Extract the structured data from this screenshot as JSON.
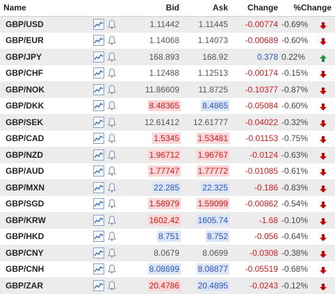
{
  "headers": {
    "name": "Name",
    "bid": "Bid",
    "ask": "Ask",
    "change": "Change",
    "pct": "%Change"
  },
  "colors": {
    "down_text": "#d01a1a",
    "down_bg": "#fbd7d7",
    "up_text": "#2a56c6",
    "up_bg": "#dbe5f7",
    "arrow_down": "#cc0000",
    "arrow_up": "#1e8c3a"
  },
  "rows": [
    {
      "name": "GBP/USD",
      "bid": "1.11442",
      "bid_state": "flat",
      "ask": "1.11445",
      "ask_state": "flat",
      "change": "-0.00774",
      "pct": "-0.69%",
      "dir": "down"
    },
    {
      "name": "GBP/EUR",
      "bid": "1.14068",
      "bid_state": "flat",
      "ask": "1.14073",
      "ask_state": "flat",
      "change": "-0.00689",
      "pct": "-0.60%",
      "dir": "down"
    },
    {
      "name": "GBP/JPY",
      "bid": "168.893",
      "bid_state": "flat",
      "ask": "168.92",
      "ask_state": "flat",
      "change": "0.378",
      "pct": "0.22%",
      "dir": "up"
    },
    {
      "name": "GBP/CHF",
      "bid": "1.12488",
      "bid_state": "flat",
      "ask": "1.12513",
      "ask_state": "flat",
      "change": "-0.00174",
      "pct": "-0.15%",
      "dir": "down"
    },
    {
      "name": "GBP/NOK",
      "bid": "11.86609",
      "bid_state": "flat",
      "ask": "11.8725",
      "ask_state": "flat",
      "change": "-0.10377",
      "pct": "-0.87%",
      "dir": "down"
    },
    {
      "name": "GBP/DKK",
      "bid": "8.48365",
      "bid_state": "down",
      "ask": "8.4865",
      "ask_state": "up",
      "change": "-0.05084",
      "pct": "-0.60%",
      "dir": "down"
    },
    {
      "name": "GBP/SEK",
      "bid": "12.61412",
      "bid_state": "flat",
      "ask": "12.61777",
      "ask_state": "flat",
      "change": "-0.04022",
      "pct": "-0.32%",
      "dir": "down"
    },
    {
      "name": "GBP/CAD",
      "bid": "1.5345",
      "bid_state": "down",
      "ask": "1.53481",
      "ask_state": "down",
      "change": "-0.01153",
      "pct": "-0.75%",
      "dir": "down"
    },
    {
      "name": "GBP/NZD",
      "bid": "1.96712",
      "bid_state": "down",
      "ask": "1.96767",
      "ask_state": "down",
      "change": "-0.0124",
      "pct": "-0.63%",
      "dir": "down"
    },
    {
      "name": "GBP/AUD",
      "bid": "1.77747",
      "bid_state": "down",
      "ask": "1.77772",
      "ask_state": "down",
      "change": "-0.01085",
      "pct": "-0.61%",
      "dir": "down"
    },
    {
      "name": "GBP/MXN",
      "bid": "22.285",
      "bid_state": "up",
      "ask": "22.325",
      "ask_state": "up",
      "change": "-0.186",
      "pct": "-0.83%",
      "dir": "down"
    },
    {
      "name": "GBP/SGD",
      "bid": "1.58979",
      "bid_state": "down",
      "ask": "1.59099",
      "ask_state": "down",
      "change": "-0.00862",
      "pct": "-0.54%",
      "dir": "down"
    },
    {
      "name": "GBP/KRW",
      "bid": "1602.42",
      "bid_state": "down",
      "ask": "1605.74",
      "ask_state": "up",
      "change": "-1.68",
      "pct": "-0.10%",
      "dir": "down"
    },
    {
      "name": "GBP/HKD",
      "bid": "8.751",
      "bid_state": "up",
      "ask": "8.752",
      "ask_state": "up",
      "change": "-0.056",
      "pct": "-0.64%",
      "dir": "down"
    },
    {
      "name": "GBP/CNY",
      "bid": "8.0679",
      "bid_state": "flat",
      "ask": "8.0699",
      "ask_state": "flat",
      "change": "-0.0308",
      "pct": "-0.38%",
      "dir": "down"
    },
    {
      "name": "GBP/CNH",
      "bid": "8.08699",
      "bid_state": "up",
      "ask": "8.08877",
      "ask_state": "up",
      "change": "-0.05519",
      "pct": "-0.68%",
      "dir": "down"
    },
    {
      "name": "GBP/ZAR",
      "bid": "20.4786",
      "bid_state": "down",
      "ask": "20.4895",
      "ask_state": "up",
      "change": "-0.0243",
      "pct": "-0.12%",
      "dir": "down"
    }
  ],
  "icons": {
    "chart": "line-chart-icon",
    "alert": "bell-icon",
    "up": "arrow-up-icon",
    "down": "arrow-down-icon"
  }
}
